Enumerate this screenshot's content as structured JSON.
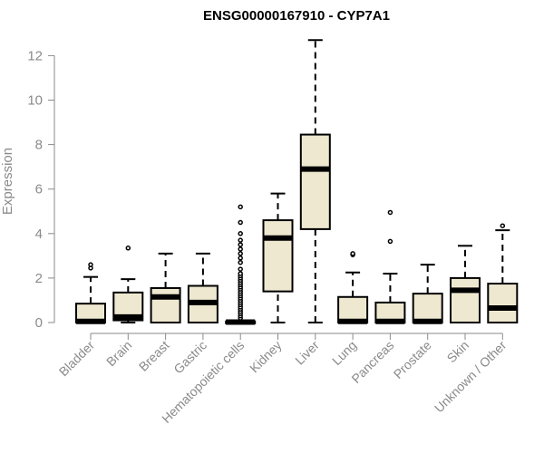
{
  "chart_data": {
    "type": "box",
    "title": "ENSG00000167910 - CYP7A1",
    "xlabel": "",
    "ylabel": "Expression",
    "ylim": [
      0,
      12.8
    ],
    "yticks": [
      0,
      2,
      4,
      6,
      8,
      10,
      12
    ],
    "box_color": "#EEE8D0",
    "categories": [
      "Bladder",
      "Brain",
      "Breast",
      "Gastric",
      "Hematopoietic cells",
      "Kidney",
      "Liver",
      "Lung",
      "Pancreas",
      "Prostate",
      "Skin",
      "Unknown / Other"
    ],
    "boxes": [
      {
        "category": "Bladder",
        "whisker_low": 0.0,
        "q1": 0.0,
        "median": 0.05,
        "q3": 0.85,
        "whisker_high": 2.05,
        "outliers": [
          2.45,
          2.6
        ]
      },
      {
        "category": "Brain",
        "whisker_low": 0.0,
        "q1": 0.1,
        "median": 0.25,
        "q3": 1.35,
        "whisker_high": 1.95,
        "outliers": [
          3.35
        ]
      },
      {
        "category": "Breast",
        "whisker_low": 0.0,
        "q1": 0.0,
        "median": 1.15,
        "q3": 1.55,
        "whisker_high": 3.1,
        "outliers": []
      },
      {
        "category": "Gastric",
        "whisker_low": 0.0,
        "q1": 0.0,
        "median": 0.9,
        "q3": 1.65,
        "whisker_high": 3.1,
        "outliers": []
      },
      {
        "category": "Hematopoietic cells",
        "whisker_low": 0.0,
        "q1": 0.0,
        "median": 0.02,
        "q3": 0.05,
        "whisker_high": 0.1,
        "outliers": [
          0.2,
          0.3,
          0.4,
          0.5,
          0.6,
          0.7,
          0.8,
          0.9,
          1.0,
          1.1,
          1.2,
          1.3,
          1.4,
          1.5,
          1.6,
          1.7,
          1.8,
          1.9,
          2.0,
          2.1,
          2.2,
          2.4,
          2.7,
          2.9,
          3.1,
          3.3,
          3.5,
          3.7,
          4.0,
          4.5,
          5.2
        ]
      },
      {
        "category": "Kidney",
        "whisker_low": 0.0,
        "q1": 1.4,
        "median": 3.8,
        "q3": 4.6,
        "whisker_high": 5.8,
        "outliers": []
      },
      {
        "category": "Liver",
        "whisker_low": 0.0,
        "q1": 4.2,
        "median": 6.9,
        "q3": 8.45,
        "whisker_high": 12.7,
        "outliers": []
      },
      {
        "category": "Lung",
        "whisker_low": 0.0,
        "q1": 0.0,
        "median": 0.05,
        "q3": 1.15,
        "whisker_high": 2.25,
        "outliers": [
          3.05,
          3.1
        ]
      },
      {
        "category": "Pancreas",
        "whisker_low": 0.0,
        "q1": 0.0,
        "median": 0.05,
        "q3": 0.9,
        "whisker_high": 2.2,
        "outliers": [
          3.65,
          4.95
        ]
      },
      {
        "category": "Prostate",
        "whisker_low": 0.0,
        "q1": 0.0,
        "median": 0.05,
        "q3": 1.3,
        "whisker_high": 2.6,
        "outliers": []
      },
      {
        "category": "Skin",
        "whisker_low": 0.0,
        "q1": 0.0,
        "median": 1.45,
        "q3": 2.0,
        "whisker_high": 3.45,
        "outliers": []
      },
      {
        "category": "Unknown / Other",
        "whisker_low": 0.0,
        "q1": 0.0,
        "median": 0.65,
        "q3": 1.75,
        "whisker_high": 4.15,
        "outliers": [
          4.35
        ]
      }
    ]
  }
}
